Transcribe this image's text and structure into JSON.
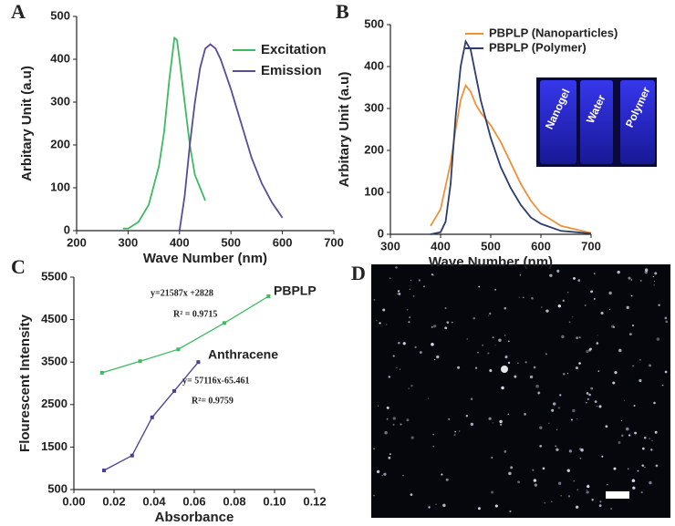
{
  "chart_data": [
    {
      "type": "line",
      "label": "A",
      "x_label": "Wave Number (nm)",
      "y_label": "Arbitary Unit (a.u)",
      "xlim": [
        200,
        700
      ],
      "xticks": [
        200,
        300,
        400,
        500,
        600,
        700
      ],
      "ylim": [
        0,
        500
      ],
      "yticks": [
        0,
        100,
        200,
        300,
        400,
        500
      ],
      "legend": "upper right",
      "series": [
        {
          "name": "Excitation",
          "color": "#3dba62",
          "x": [
            290,
            300,
            320,
            340,
            360,
            370,
            380,
            390,
            395,
            400,
            410,
            420,
            430,
            440,
            450
          ],
          "values": [
            5,
            5,
            20,
            60,
            150,
            230,
            350,
            450,
            445,
            400,
            300,
            200,
            130,
            100,
            70
          ]
        },
        {
          "name": "Emission",
          "color": "#5a4a9c",
          "x": [
            400,
            410,
            420,
            430,
            440,
            450,
            460,
            470,
            480,
            500,
            520,
            540,
            560,
            580,
            600
          ],
          "values": [
            0,
            80,
            200,
            300,
            380,
            425,
            435,
            425,
            400,
            330,
            250,
            170,
            110,
            65,
            30
          ]
        }
      ]
    },
    {
      "type": "line",
      "label": "B",
      "x_label": "Wave Number (nm)",
      "y_label": "Arbitary Unit (a.u)",
      "xlim": [
        300,
        700
      ],
      "xticks": [
        300,
        400,
        500,
        600,
        700
      ],
      "ylim": [
        0,
        500
      ],
      "yticks": [
        0,
        100,
        200,
        300,
        400,
        500
      ],
      "legend": "upper right",
      "inset_labels": [
        "Nanogel",
        "Water",
        "Polymer"
      ],
      "series": [
        {
          "name": "PBPLP (Nanoparticles)",
          "color": "#f0913a",
          "x": [
            380,
            400,
            420,
            430,
            440,
            450,
            460,
            470,
            480,
            500,
            520,
            540,
            560,
            580,
            600,
            640,
            700
          ],
          "values": [
            20,
            60,
            170,
            250,
            320,
            355,
            340,
            310,
            290,
            260,
            220,
            170,
            120,
            80,
            50,
            20,
            3
          ]
        },
        {
          "name": "PBPLP (Polymer)",
          "color": "#2a3d6e",
          "x": [
            380,
            400,
            410,
            420,
            430,
            440,
            450,
            460,
            470,
            480,
            500,
            520,
            540,
            560,
            580,
            600,
            640,
            700
          ],
          "values": [
            0,
            5,
            30,
            120,
            280,
            400,
            460,
            440,
            380,
            320,
            230,
            160,
            110,
            70,
            40,
            25,
            8,
            2
          ]
        }
      ]
    },
    {
      "type": "scatter",
      "label": "C",
      "x_label": "Absorbance",
      "y_label": "Flourescent Intensity",
      "xlim": [
        0,
        0.12
      ],
      "xticks": [
        {
          "value": 0,
          "label": "0.00"
        },
        {
          "value": 0.02,
          "label": "0.02"
        },
        {
          "value": 0.04,
          "label": "0.04"
        },
        {
          "value": 0.06,
          "label": "0.06"
        },
        {
          "value": 0.08,
          "label": "0.08"
        },
        {
          "value": 0.1,
          "label": "0.10"
        },
        {
          "value": 0.12,
          "label": "0.12"
        }
      ],
      "ylim": [
        500,
        5500
      ],
      "yticks": [
        500,
        1500,
        2500,
        3500,
        4500,
        5500
      ],
      "annotations": [
        "y=21587x +2828",
        "R² = 0.9715",
        "y= 57116x-65.461",
        "R²= 0.9759"
      ],
      "series": [
        {
          "name": "PBPLP",
          "color": "#3dba62",
          "x": [
            0.014,
            0.033,
            0.052,
            0.075,
            0.097
          ],
          "values": [
            3250,
            3520,
            3800,
            4420,
            5050
          ]
        },
        {
          "name": "Anthracene",
          "color": "#4a3f96",
          "x": [
            0.015,
            0.029,
            0.039,
            0.05,
            0.062
          ],
          "values": [
            950,
            1300,
            2200,
            2820,
            3500
          ]
        }
      ]
    }
  ],
  "image_panel": {
    "label": "D"
  }
}
